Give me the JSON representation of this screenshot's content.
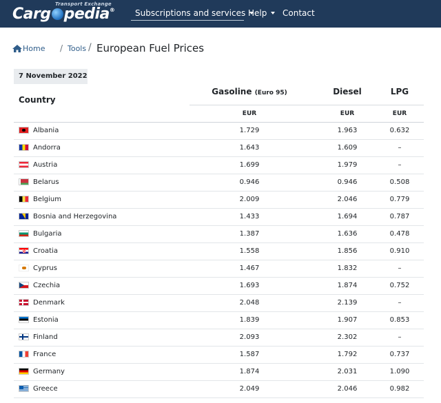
{
  "brand": {
    "tagline": "Transport Exchange",
    "name_left": "Carg",
    "name_right": "pedia",
    "reg": "®"
  },
  "nav": {
    "subscriptions": "Subscriptions and services",
    "help": "Help",
    "contact": "Contact"
  },
  "breadcrumb": {
    "home": "Home",
    "sep": "/",
    "tools": "Tools",
    "title": "European Fuel Prices"
  },
  "date": "7 November 2022",
  "table": {
    "col_country": "Country",
    "col_gasoline": "Gasoline",
    "col_gasoline_sub": "(Euro 95)",
    "col_diesel": "Diesel",
    "col_lpg": "LPG",
    "currency": "EUR",
    "rows": [
      {
        "country": "Albania",
        "gasoline": "1.729",
        "diesel": "1.963",
        "lpg": "0.632"
      },
      {
        "country": "Andorra",
        "gasoline": "1.643",
        "diesel": "1.609",
        "lpg": "–"
      },
      {
        "country": "Austria",
        "gasoline": "1.699",
        "diesel": "1.979",
        "lpg": "–"
      },
      {
        "country": "Belarus",
        "gasoline": "0.946",
        "diesel": "0.946",
        "lpg": "0.508"
      },
      {
        "country": "Belgium",
        "gasoline": "2.009",
        "diesel": "2.046",
        "lpg": "0.779"
      },
      {
        "country": "Bosnia and Herzegovina",
        "gasoline": "1.433",
        "diesel": "1.694",
        "lpg": "0.787"
      },
      {
        "country": "Bulgaria",
        "gasoline": "1.387",
        "diesel": "1.636",
        "lpg": "0.478"
      },
      {
        "country": "Croatia",
        "gasoline": "1.558",
        "diesel": "1.856",
        "lpg": "0.910"
      },
      {
        "country": "Cyprus",
        "gasoline": "1.467",
        "diesel": "1.832",
        "lpg": "–"
      },
      {
        "country": "Czechia",
        "gasoline": "1.693",
        "diesel": "1.874",
        "lpg": "0.752"
      },
      {
        "country": "Denmark",
        "gasoline": "2.048",
        "diesel": "2.139",
        "lpg": "–"
      },
      {
        "country": "Estonia",
        "gasoline": "1.839",
        "diesel": "1.907",
        "lpg": "0.853"
      },
      {
        "country": "Finland",
        "gasoline": "2.093",
        "diesel": "2.302",
        "lpg": "–"
      },
      {
        "country": "France",
        "gasoline": "1.587",
        "diesel": "1.792",
        "lpg": "0.737"
      },
      {
        "country": "Germany",
        "gasoline": "1.874",
        "diesel": "2.031",
        "lpg": "1.090"
      },
      {
        "country": "Greece",
        "gasoline": "2.049",
        "diesel": "2.046",
        "lpg": "0.982"
      }
    ]
  },
  "colors": {
    "nav_bg": "#203a5a",
    "link": "#2f5d8a"
  }
}
